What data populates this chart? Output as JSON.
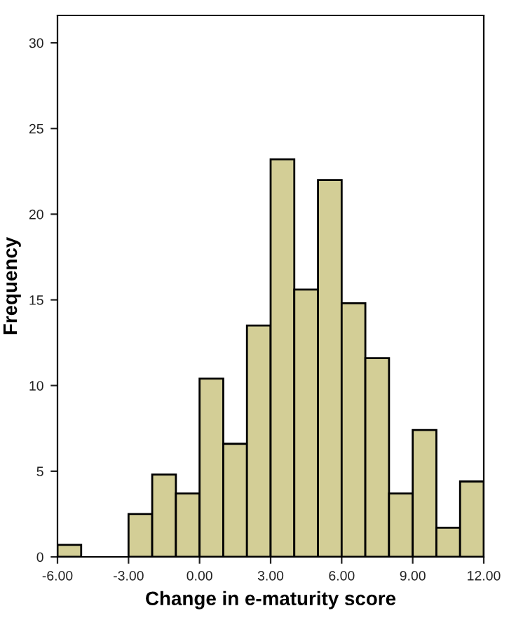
{
  "chart_data": {
    "type": "histogram",
    "xlabel": "Change in e-maturity score",
    "ylabel": "Frequency",
    "bins": [
      -6,
      -5,
      -4,
      -3,
      -2,
      -1,
      0,
      1,
      2,
      3,
      4,
      5,
      6,
      7,
      8,
      9,
      10,
      11,
      12
    ],
    "values": [
      0.7,
      0,
      0,
      2.5,
      4.8,
      3.7,
      10.4,
      6.6,
      13.5,
      23.2,
      15.6,
      22.0,
      14.8,
      11.6,
      3.7,
      7.4,
      1.7,
      4.4
    ],
    "color": "#d3ce96",
    "xlim": [
      -6,
      12
    ],
    "ylim": [
      0,
      31.6
    ],
    "xticks": [
      {
        "value": -6,
        "label": "-6.00"
      },
      {
        "value": -3,
        "label": "-3.00"
      },
      {
        "value": 0,
        "label": "0.00"
      },
      {
        "value": 3,
        "label": "3.00"
      },
      {
        "value": 6,
        "label": "6.00"
      },
      {
        "value": 9,
        "label": "9.00"
      },
      {
        "value": 12,
        "label": "12.00"
      }
    ],
    "yticks": [
      0,
      5,
      10,
      15,
      20,
      25,
      30
    ],
    "grid": false
  }
}
